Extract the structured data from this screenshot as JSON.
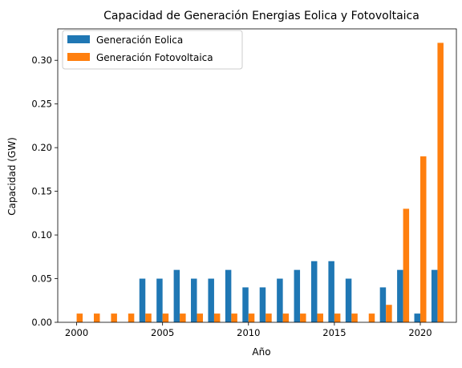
{
  "chart_data": {
    "type": "bar",
    "title": "Capacidad de Generación Energias Eolica y Fotovoltaica",
    "xlabel": "Año",
    "ylabel": "Capacidad (GW)",
    "xlim": [
      1998.9,
      2022.1
    ],
    "ylim": [
      0,
      0.336
    ],
    "xticks": [
      2000,
      2005,
      2010,
      2015,
      2020
    ],
    "yticks": [
      0.0,
      0.05,
      0.1,
      0.15,
      0.2,
      0.25,
      0.3
    ],
    "ytick_labels": [
      "0.00",
      "0.05",
      "0.10",
      "0.15",
      "0.20",
      "0.25",
      "0.30"
    ],
    "grid": false,
    "legend_position": "top-left",
    "x": [
      2000,
      2001,
      2002,
      2003,
      2004,
      2005,
      2006,
      2007,
      2008,
      2009,
      2010,
      2011,
      2012,
      2013,
      2014,
      2015,
      2016,
      2017,
      2018,
      2019,
      2020,
      2021
    ],
    "series": [
      {
        "name": "Generación Eolica",
        "color": "#1f77b4",
        "values": [
          0,
          0,
          0,
          0,
          0.05,
          0.05,
          0.06,
          0.05,
          0.05,
          0.06,
          0.04,
          0.04,
          0.05,
          0.06,
          0.07,
          0.07,
          0.05,
          0,
          0.04,
          0.06,
          0.01,
          0.06
        ]
      },
      {
        "name": "Generación Fotovoltaica",
        "color": "#ff7f0e",
        "values": [
          0.01,
          0.01,
          0.01,
          0.01,
          0.01,
          0.01,
          0.01,
          0.01,
          0.01,
          0.01,
          0.01,
          0.01,
          0.01,
          0.01,
          0.01,
          0.01,
          0.01,
          0.01,
          0.02,
          0.13,
          0.19,
          0.32
        ]
      }
    ]
  }
}
